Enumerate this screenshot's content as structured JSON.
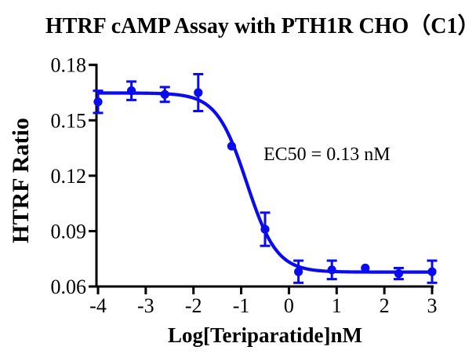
{
  "title": "HTRF cAMP Assay with PTH1R CHO（C1）",
  "axes": {
    "x_label": "Log[Teriparatide]nM",
    "y_label": "HTRF Ratio"
  },
  "annotation": {
    "ec50_label": "EC50 = 0.13 nM"
  },
  "colors": {
    "curve": "#0b0bef",
    "axis": "#000000",
    "text": "#000000",
    "background": "#ffffff"
  },
  "chart_data": {
    "type": "scatter",
    "title": "HTRF cAMP Assay with PTH1R CHO（C1）",
    "xlabel": "Log[Teriparatide]nM",
    "ylabel": "HTRF Ratio",
    "xlim": [
      -4,
      3
    ],
    "ylim": [
      0.06,
      0.18
    ],
    "xticks": [
      -4,
      -3,
      -2,
      -1,
      0,
      1,
      2,
      3
    ],
    "xtick_labels": [
      "-4",
      "-3",
      "-2",
      "-1",
      "0",
      "1",
      "2",
      "3"
    ],
    "yticks": [
      0.18,
      0.15,
      0.12,
      0.09,
      0.06
    ],
    "ytick_labels": [
      "0.18",
      "0.15",
      "0.12",
      "0.09",
      "0.06"
    ],
    "grid": false,
    "legend": "none",
    "series": [
      {
        "name": "PTH1R CHO (C1)",
        "color": "#0b0bef",
        "marker": "circle",
        "x": [
          -4.0,
          -3.3,
          -2.6,
          -1.9,
          -1.2,
          -0.5,
          0.2,
          0.9,
          1.6,
          2.3,
          3.0
        ],
        "y": [
          0.16,
          0.166,
          0.164,
          0.165,
          0.136,
          0.091,
          0.068,
          0.069,
          0.07,
          0.067,
          0.068
        ],
        "yerr": [
          0.006,
          0.005,
          0.004,
          0.01,
          0.0,
          0.009,
          0.006,
          0.005,
          0.0,
          0.003,
          0.006
        ]
      }
    ],
    "fit": {
      "model": "four-parameter-logistic",
      "top": 0.1648,
      "bottom": 0.0678,
      "logEC50": -0.886,
      "hill": 1.38,
      "ec50_nM": 0.13
    },
    "annotations": [
      {
        "text": "EC50 = 0.13 nM",
        "x": -0.53,
        "y": 0.13
      }
    ]
  }
}
